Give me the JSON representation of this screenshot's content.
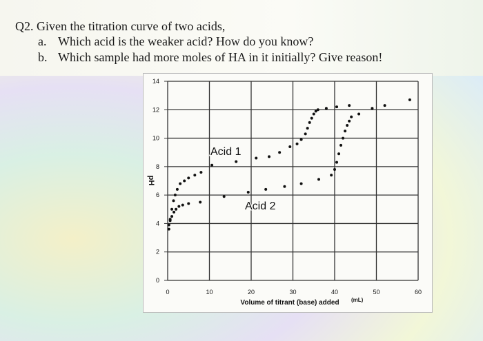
{
  "question": {
    "title": "Q2. Given the titration curve of two acids,",
    "items": [
      {
        "marker": "a.",
        "text": "Which acid is the weaker acid? How do you know?"
      },
      {
        "marker": "b.",
        "text": "Which sample had more moles of HA in it initially? Give reason!"
      }
    ]
  },
  "chart_data": {
    "type": "scatter",
    "xlabel": "Volume of titrant (base) added",
    "xlabel_unit": "(mL)",
    "ylabel": "pH",
    "xlim": [
      0,
      60
    ],
    "xticks": [
      0,
      10,
      20,
      30,
      40,
      50,
      60
    ],
    "ylim": [
      0,
      14
    ],
    "yticks": [
      0,
      2,
      4,
      6,
      8,
      10,
      12,
      14
    ],
    "grid": true,
    "series": [
      {
        "name": "Acid 1",
        "color": "#111111",
        "x": [
          0.3,
          0.6,
          1,
          1.4,
          1.8,
          2.3,
          3,
          4,
          5,
          6.5,
          8,
          10.6,
          16.4,
          21.2,
          24.3,
          26.8,
          29.3,
          31,
          32,
          33,
          33.5,
          34,
          34.5,
          35,
          35.5,
          36,
          38,
          40.5,
          43.5
        ],
        "values": [
          3.6,
          4.3,
          5,
          5.6,
          6,
          6.4,
          6.8,
          7,
          7.2,
          7.4,
          7.6,
          8.1,
          8.35,
          8.6,
          8.7,
          9,
          9.4,
          9.6,
          9.9,
          10.3,
          10.7,
          11.1,
          11.4,
          11.7,
          11.9,
          12,
          12.1,
          12.2,
          12.3
        ]
      },
      {
        "name": "Acid 2",
        "color": "#111111",
        "x": [
          0.3,
          0.6,
          1,
          1.5,
          2,
          2.7,
          3.6,
          5,
          7.8,
          13.5,
          19.3,
          23.5,
          28,
          32,
          36.2,
          39.2,
          40,
          40.5,
          41,
          41.5,
          42,
          42.5,
          43,
          43.5,
          44,
          45.8,
          49,
          52,
          58
        ],
        "values": [
          3.9,
          4.2,
          4.5,
          4.8,
          5,
          5.2,
          5.3,
          5.4,
          5.5,
          5.9,
          6.2,
          6.4,
          6.6,
          6.8,
          7.1,
          7.4,
          7.8,
          8.3,
          8.9,
          9.5,
          10,
          10.5,
          10.9,
          11.2,
          11.5,
          11.7,
          12.1,
          12.3,
          12.7
        ]
      }
    ]
  }
}
